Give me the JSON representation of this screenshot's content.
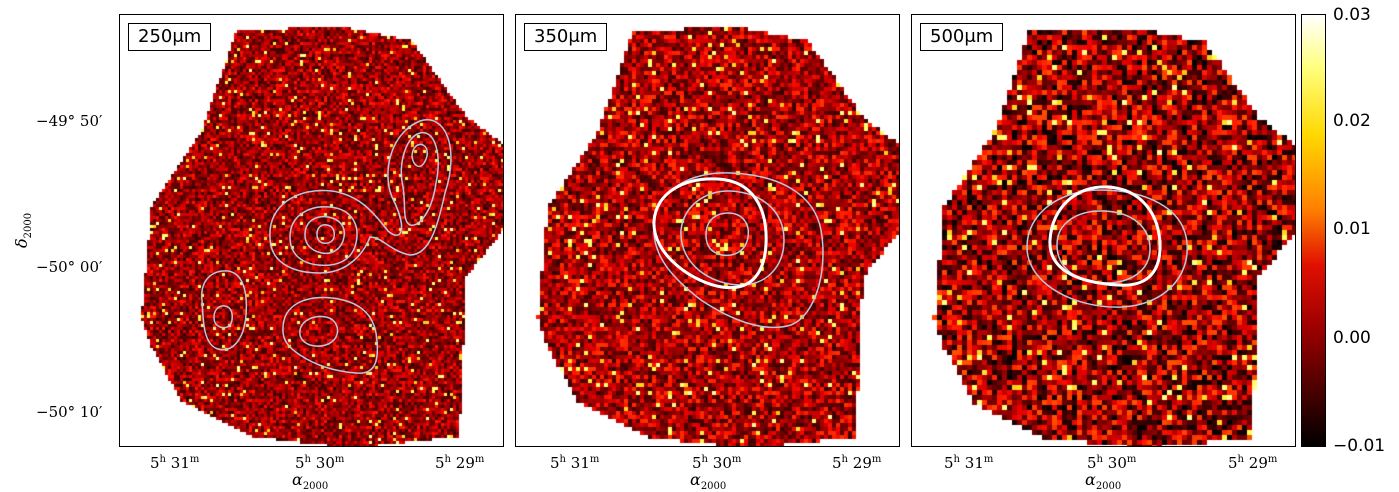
{
  "figure": {
    "panels": [
      {
        "id": "250",
        "label": "250μm"
      },
      {
        "id": "350",
        "label": "350μm"
      },
      {
        "id": "500",
        "label": "500μm"
      }
    ],
    "y_axis": {
      "title": "δ",
      "title_sub": "2000",
      "ticks": [
        "−49° 50′",
        "−50° 00′",
        "−50° 10′"
      ]
    },
    "x_axis": {
      "title": "α",
      "title_sub": "2000",
      "ticks": [
        {
          "h": "5",
          "m": "31"
        },
        {
          "h": "5",
          "m": "30"
        },
        {
          "h": "5",
          "m": "29"
        }
      ]
    },
    "colorbar": {
      "ticks": [
        "0.03",
        "0.02",
        "0.01",
        "0.00",
        "−0.01"
      ],
      "range": [
        -0.01,
        0.03
      ],
      "colormap": "afmhot"
    },
    "colors": {
      "contour": "#b8c8dc",
      "contour_strong": "#ffffff",
      "frame": "#000000"
    }
  }
}
